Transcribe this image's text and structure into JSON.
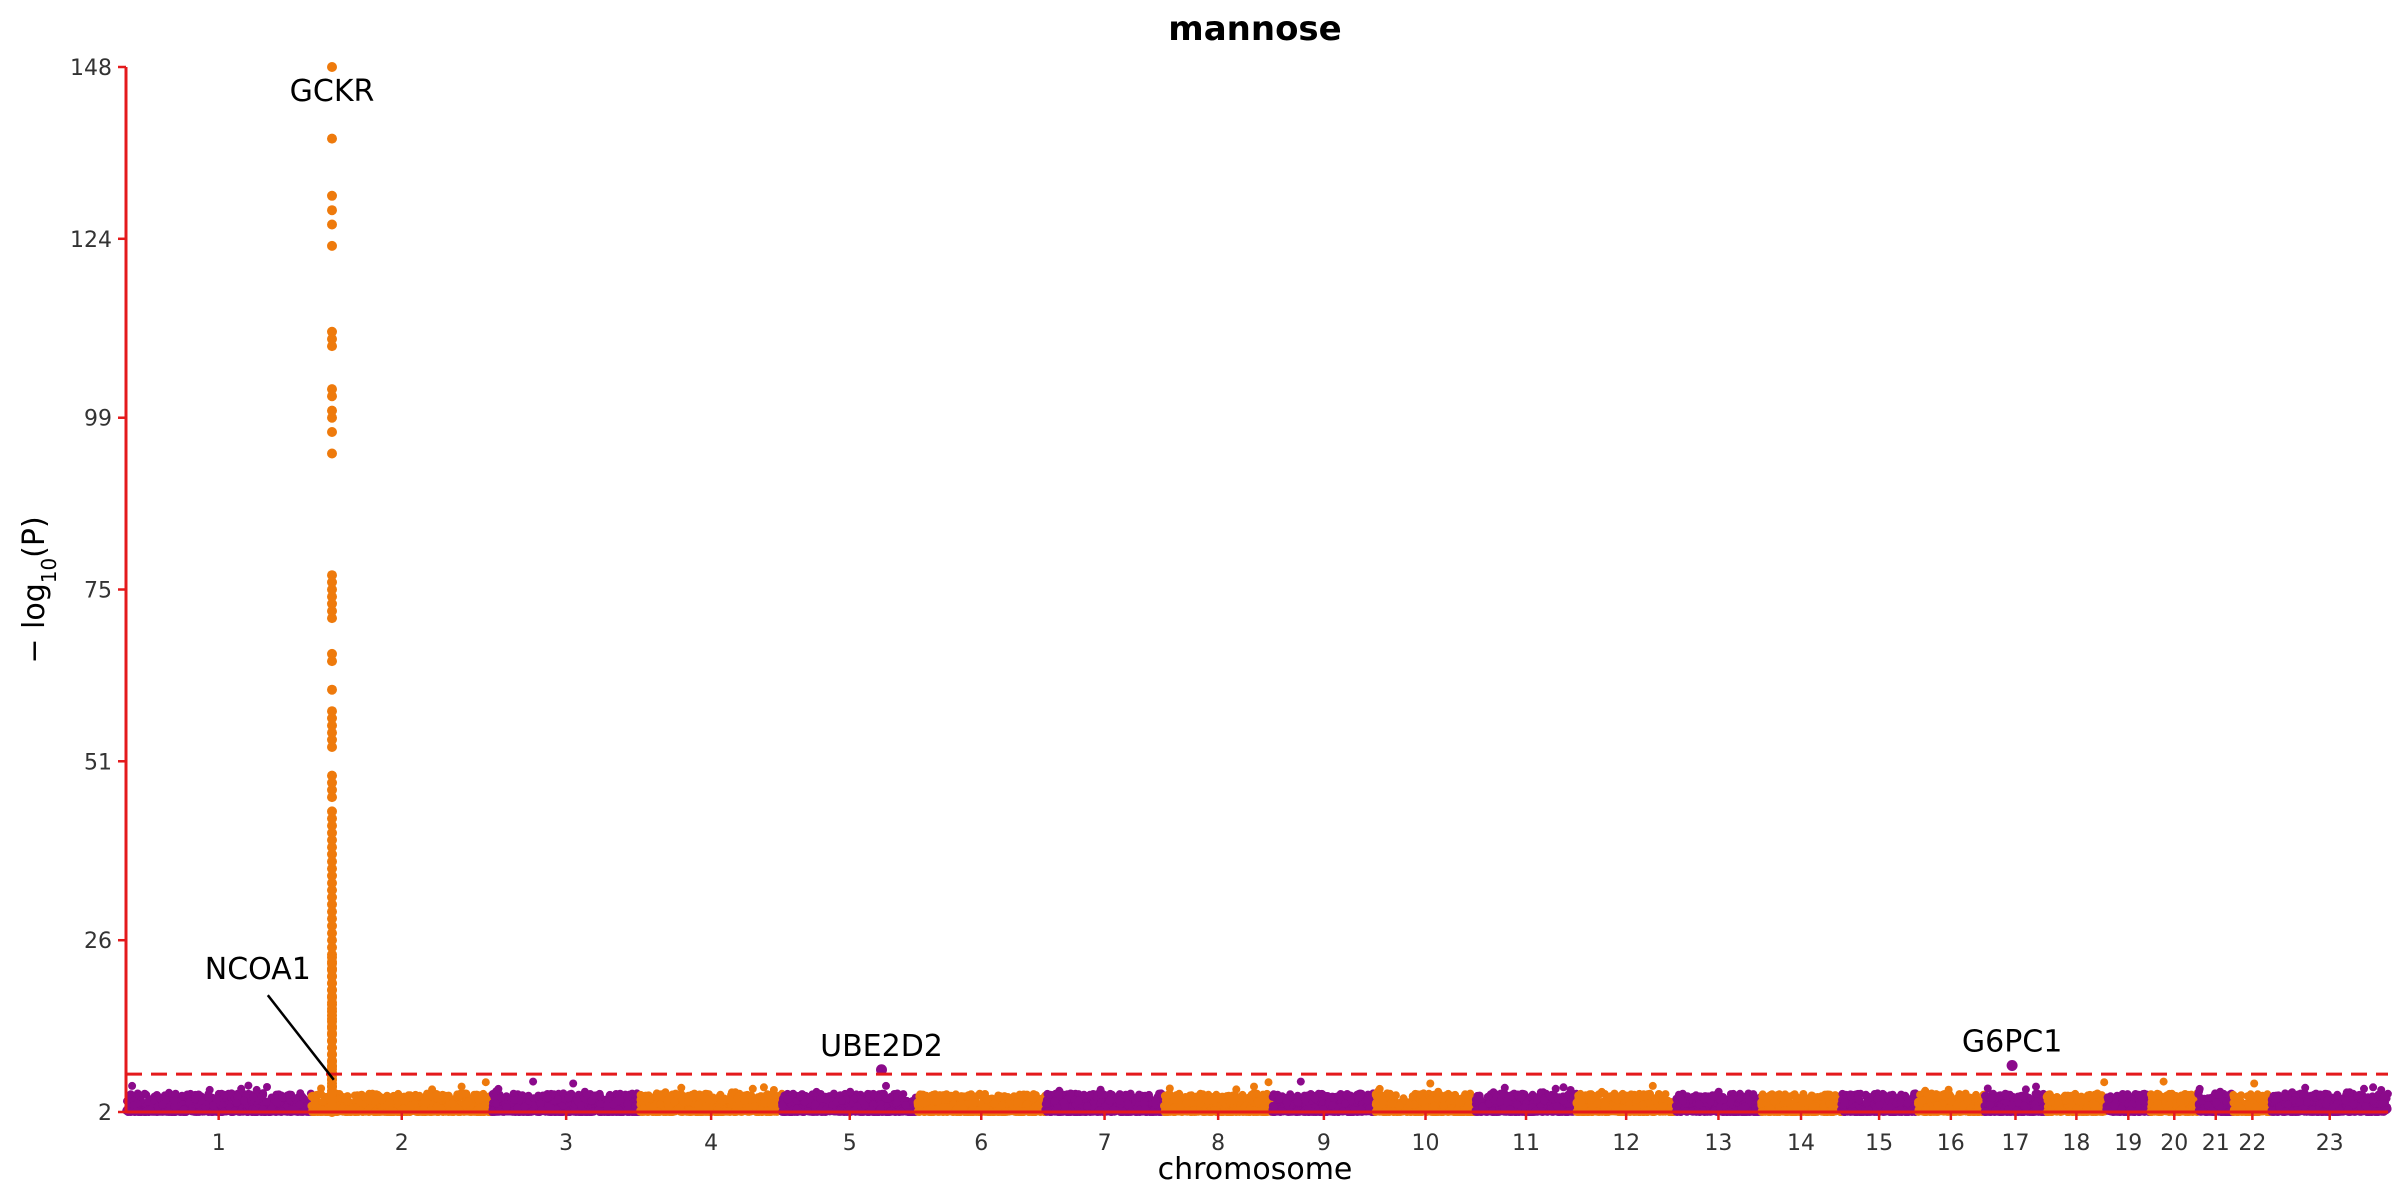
{
  "chart_data": {
    "type": "scatter",
    "title": "mannose",
    "xlabel": "chromosome",
    "ylabel_prefix": "− log",
    "ylabel_sub": "10",
    "ylabel_suffix": "(P)",
    "yticks": [
      2,
      26,
      51,
      75,
      99,
      124,
      148
    ],
    "ylim": [
      2,
      148
    ],
    "significance_line": 7.3,
    "colors": {
      "odd": "#8B0A8B",
      "even": "#EE7A0C",
      "axis": "#E41A1C",
      "threshold": "#E41A1C"
    },
    "chromosomes": [
      {
        "label": "1",
        "length": 248
      },
      {
        "label": "2",
        "length": 242
      },
      {
        "label": "3",
        "length": 198
      },
      {
        "label": "4",
        "length": 190
      },
      {
        "label": "5",
        "length": 181
      },
      {
        "label": "6",
        "length": 171
      },
      {
        "label": "7",
        "length": 159
      },
      {
        "label": "8",
        "length": 145
      },
      {
        "label": "9",
        "length": 138
      },
      {
        "label": "10",
        "length": 134
      },
      {
        "label": "11",
        "length": 135
      },
      {
        "label": "12",
        "length": 133
      },
      {
        "label": "13",
        "length": 114
      },
      {
        "label": "14",
        "length": 107
      },
      {
        "label": "15",
        "length": 102
      },
      {
        "label": "16",
        "length": 90
      },
      {
        "label": "17",
        "length": 83
      },
      {
        "label": "18",
        "length": 80
      },
      {
        "label": "19",
        "length": 59
      },
      {
        "label": "20",
        "length": 64
      },
      {
        "label": "21",
        "length": 47
      },
      {
        "label": "22",
        "length": 51
      },
      {
        "label": "23",
        "length": 156
      }
    ],
    "peak": {
      "chromosome": "2",
      "position": 27.7,
      "values": [
        148,
        138,
        130,
        128,
        126,
        123,
        111,
        110,
        109,
        103,
        102,
        100,
        99,
        97,
        94,
        77,
        76,
        75,
        74,
        73,
        72,
        71,
        66,
        65,
        61,
        58,
        57,
        56,
        55,
        54,
        53,
        49,
        48,
        47,
        46,
        44,
        43,
        42,
        41,
        40,
        39,
        38,
        37,
        36,
        35,
        34,
        33,
        32,
        31,
        30,
        29,
        28,
        27,
        26,
        25,
        24,
        23,
        22,
        21,
        20,
        19,
        18,
        17,
        16,
        15,
        14,
        13,
        12,
        11,
        10,
        9,
        8.5,
        8,
        7.5,
        7,
        6.5,
        6,
        5.5,
        5,
        4.5,
        4
      ]
    },
    "minor_peaks": [
      {
        "chromosome": "5",
        "position": 133,
        "value": 7.9
      },
      {
        "chromosome": "17",
        "position": 37,
        "value": 8.5
      }
    ],
    "annotations": [
      {
        "label": "GCKR",
        "chromosome": "2",
        "position": 27.7,
        "value": 148,
        "placement": "below-point"
      },
      {
        "label": "NCOA1",
        "chromosome": "2",
        "position": 24.7,
        "value": 6.5,
        "placement": "upper-left",
        "label_value": 20
      },
      {
        "label": "UBE2D2",
        "chromosome": "5",
        "position": 133,
        "value": 7.9,
        "placement": "above-point"
      },
      {
        "label": "G6PC1",
        "chromosome": "17",
        "position": 37,
        "value": 8.5,
        "placement": "above-point"
      }
    ]
  }
}
